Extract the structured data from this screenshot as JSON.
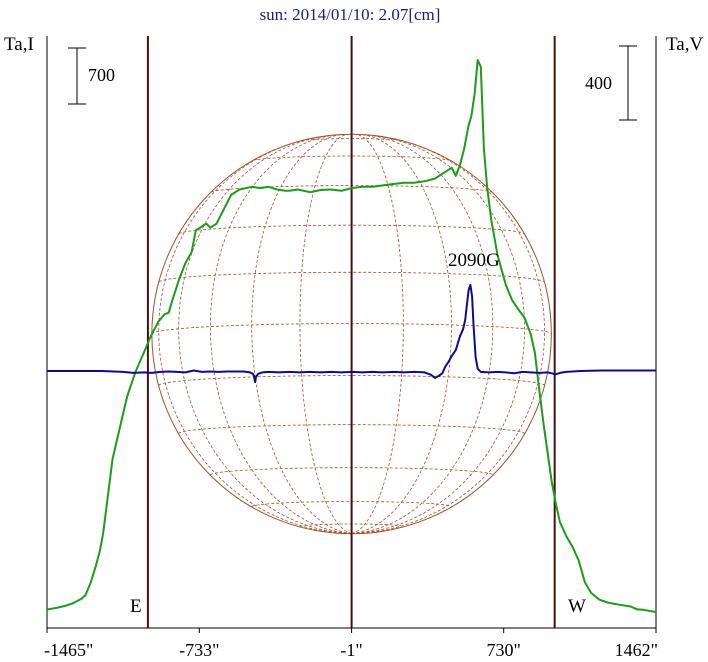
{
  "chart_data": {
    "type": "line",
    "title": "sun: 2014/01/10: 2.07[cm]",
    "left_axis_label": "Ta,I",
    "right_axis_label": "Ta,V",
    "left_scale_bar": "700",
    "right_scale_bar": "400",
    "annotation": "2090G",
    "limb_labels": {
      "east": "E",
      "west": "W"
    },
    "x_ticks": [
      {
        "label": "-1465\"",
        "value": -1465
      },
      {
        "label": "-733\"",
        "value": -733
      },
      {
        "label": "-1\"",
        "value": -1
      },
      {
        "label": "730\"",
        "value": 730
      },
      {
        "label": "1462\"",
        "value": 1462
      }
    ],
    "xlim": [
      -1465,
      1462
    ],
    "vertical_markers": [
      -980,
      -1,
      975
    ],
    "solar_disk": {
      "center_x": -1,
      "radius": 960
    },
    "colors": {
      "intensity": "#1e9a1e",
      "polarization": "#0c0c8c",
      "markers": "#4a1010",
      "disk": "#a0522d",
      "title": "#1a1a8c"
    },
    "series": [
      {
        "key": "intensity",
        "points": [
          [
            -1465,
            9
          ],
          [
            -1420,
            15
          ],
          [
            -1380,
            22
          ],
          [
            -1340,
            32
          ],
          [
            -1300,
            48
          ],
          [
            -1280,
            62
          ],
          [
            -1255,
            108
          ],
          [
            -1230,
            170
          ],
          [
            -1210,
            228
          ],
          [
            -1195,
            290
          ],
          [
            -1180,
            380
          ],
          [
            -1165,
            470
          ],
          [
            -1150,
            560
          ],
          [
            -1120,
            660
          ],
          [
            -1080,
            790
          ],
          [
            -1040,
            880
          ],
          [
            -1000,
            950
          ],
          [
            -970,
            1005
          ],
          [
            -930,
            1065
          ],
          [
            -900,
            1092
          ],
          [
            -880,
            1098
          ],
          [
            -860,
            1150
          ],
          [
            -830,
            1220
          ],
          [
            -800,
            1280
          ],
          [
            -770,
            1320
          ],
          [
            -750,
            1400
          ],
          [
            -700,
            1425
          ],
          [
            -680,
            1410
          ],
          [
            -650,
            1425
          ],
          [
            -620,
            1470
          ],
          [
            -580,
            1530
          ],
          [
            -540,
            1550
          ],
          [
            -480,
            1560
          ],
          [
            -440,
            1555
          ],
          [
            -400,
            1560
          ],
          [
            -360,
            1550
          ],
          [
            -320,
            1545
          ],
          [
            -300,
            1545
          ],
          [
            -260,
            1550
          ],
          [
            -200,
            1540
          ],
          [
            -150,
            1548
          ],
          [
            -100,
            1550
          ],
          [
            -50,
            1545
          ],
          [
            0,
            1555
          ],
          [
            50,
            1560
          ],
          [
            100,
            1560
          ],
          [
            150,
            1565
          ],
          [
            200,
            1570
          ],
          [
            250,
            1575
          ],
          [
            300,
            1575
          ],
          [
            350,
            1580
          ],
          [
            400,
            1590
          ],
          [
            440,
            1610
          ],
          [
            460,
            1620
          ],
          [
            480,
            1630
          ],
          [
            500,
            1600
          ],
          [
            520,
            1640
          ],
          [
            540,
            1700
          ],
          [
            560,
            1780
          ],
          [
            575,
            1820
          ],
          [
            590,
            1900
          ],
          [
            605,
            2025
          ],
          [
            620,
            2000
          ],
          [
            635,
            1700
          ],
          [
            650,
            1560
          ],
          [
            670,
            1440
          ],
          [
            700,
            1310
          ],
          [
            740,
            1200
          ],
          [
            770,
            1145
          ],
          [
            800,
            1110
          ],
          [
            830,
            1080
          ],
          [
            860,
            1020
          ],
          [
            880,
            950
          ],
          [
            900,
            820
          ],
          [
            920,
            700
          ],
          [
            940,
            590
          ],
          [
            960,
            480
          ],
          [
            980,
            400
          ],
          [
            1000,
            330
          ],
          [
            1030,
            280
          ],
          [
            1060,
            240
          ],
          [
            1090,
            190
          ],
          [
            1120,
            110
          ],
          [
            1150,
            70
          ],
          [
            1190,
            45
          ],
          [
            1230,
            35
          ],
          [
            1260,
            30
          ],
          [
            1300,
            25
          ],
          [
            1340,
            20
          ],
          [
            1370,
            10
          ],
          [
            1400,
            8
          ],
          [
            1462,
            0
          ]
        ]
      },
      {
        "key": "polarization",
        "points": [
          [
            -1465,
            0
          ],
          [
            -1200,
            0
          ],
          [
            -1100,
            -2
          ],
          [
            -1050,
            -4
          ],
          [
            -1000,
            -3
          ],
          [
            -960,
            -4
          ],
          [
            -920,
            -2
          ],
          [
            -880,
            -1
          ],
          [
            -840,
            -2
          ],
          [
            -800,
            -3
          ],
          [
            -760,
            1
          ],
          [
            -720,
            -2
          ],
          [
            -680,
            -1
          ],
          [
            -640,
            -2
          ],
          [
            -600,
            -1
          ],
          [
            -560,
            -1
          ],
          [
            -520,
            -1
          ],
          [
            -490,
            -3
          ],
          [
            -475,
            -6
          ],
          [
            -470,
            -12
          ],
          [
            -465,
            -24
          ],
          [
            -460,
            -12
          ],
          [
            -450,
            -6
          ],
          [
            -430,
            -3
          ],
          [
            -400,
            -2
          ],
          [
            -350,
            -3
          ],
          [
            -300,
            -2
          ],
          [
            -250,
            -3
          ],
          [
            -200,
            -2
          ],
          [
            -150,
            -3
          ],
          [
            -100,
            -2
          ],
          [
            -50,
            -3
          ],
          [
            0,
            -2
          ],
          [
            50,
            -3
          ],
          [
            100,
            -2
          ],
          [
            150,
            -3
          ],
          [
            200,
            -2
          ],
          [
            250,
            -3
          ],
          [
            300,
            -2
          ],
          [
            350,
            -3
          ],
          [
            380,
            -8
          ],
          [
            400,
            -15
          ],
          [
            420,
            -10
          ],
          [
            435,
            -5
          ],
          [
            450,
            10
          ],
          [
            465,
            20
          ],
          [
            480,
            32
          ],
          [
            500,
            45
          ],
          [
            520,
            75
          ],
          [
            535,
            90
          ],
          [
            545,
            110
          ],
          [
            555,
            150
          ],
          [
            562,
            175
          ],
          [
            570,
            185
          ],
          [
            578,
            160
          ],
          [
            585,
            100
          ],
          [
            595,
            30
          ],
          [
            605,
            5
          ],
          [
            620,
            -2
          ],
          [
            660,
            -3
          ],
          [
            700,
            -2
          ],
          [
            740,
            -3
          ],
          [
            780,
            -5
          ],
          [
            820,
            -2
          ],
          [
            860,
            -3
          ],
          [
            900,
            -4
          ],
          [
            940,
            -3
          ],
          [
            960,
            -5
          ],
          [
            980,
            -7
          ],
          [
            1000,
            -4
          ],
          [
            1030,
            -2
          ],
          [
            1060,
            -1
          ],
          [
            1100,
            0
          ],
          [
            1200,
            1
          ],
          [
            1300,
            1
          ],
          [
            1400,
            1
          ],
          [
            1462,
            1
          ]
        ]
      }
    ]
  }
}
